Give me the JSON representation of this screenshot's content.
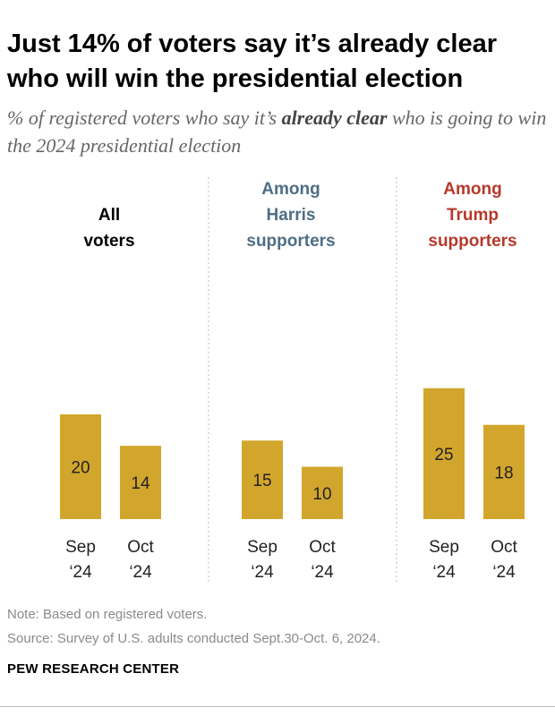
{
  "title": "Just 14% of voters say it’s already clear who will win the presidential election",
  "subtitle_before": "% of registered voters who say it’s ",
  "subtitle_emphasis": "already clear",
  "subtitle_after": " who is going to win the 2024 presidential election",
  "note": "Note: Based on registered voters.",
  "source": "Source: Survey of U.S. adults conducted Sept.30-Oct. 6, 2024.",
  "brand": "PEW RESEARCH CENTER",
  "colors": {
    "bar": "#D2A62C",
    "harris": "#4E6E85",
    "trump": "#B5392B",
    "all": "#000000",
    "divider": "#BBBBBB"
  },
  "chart_data": {
    "type": "bar",
    "categories": [
      "Sep '24",
      "Oct '24"
    ],
    "panels": [
      {
        "title_lines": [
          "All",
          "voters"
        ],
        "color_key": "all",
        "values": [
          20,
          14
        ]
      },
      {
        "title_lines": [
          "Among",
          "Harris",
          "supporters"
        ],
        "color_key": "harris",
        "values": [
          15,
          10
        ]
      },
      {
        "title_lines": [
          "Among",
          "Trump",
          "supporters"
        ],
        "color_key": "trump",
        "values": [
          25,
          18
        ]
      }
    ],
    "tick_labels": [
      [
        "Sep",
        "‘24"
      ],
      [
        "Oct",
        "‘24"
      ]
    ],
    "ylim": [
      0,
      25
    ]
  }
}
